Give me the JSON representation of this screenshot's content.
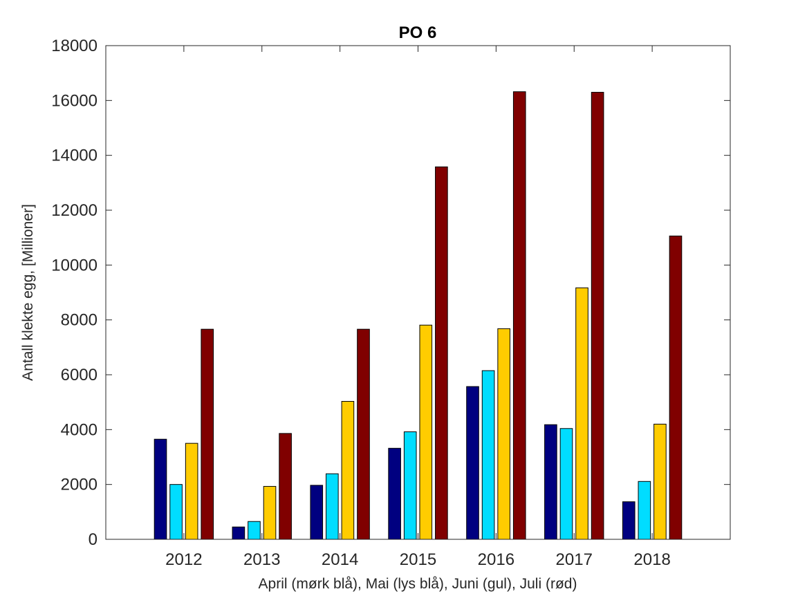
{
  "chart_data": {
    "type": "bar",
    "title": "PO 6",
    "xlabel": "April (mørk blå), Mai (lys blå), Juni (gul), Juli (rød)",
    "ylabel": "Antall klekte egg, [Millioner]",
    "categories": [
      "2012",
      "2013",
      "2014",
      "2015",
      "2016",
      "2017",
      "2018"
    ],
    "ylim": [
      0,
      18000
    ],
    "yticks": [
      0,
      2000,
      4000,
      6000,
      8000,
      10000,
      12000,
      14000,
      16000,
      18000
    ],
    "grid": false,
    "series": [
      {
        "color": "#000080",
        "values": [
          3650,
          450,
          1970,
          3320,
          5570,
          4180,
          1370
        ]
      },
      {
        "color": "#00DDFF",
        "values": [
          2000,
          650,
          2390,
          3920,
          6150,
          4040,
          2110
        ]
      },
      {
        "color": "#FFCC00",
        "values": [
          3500,
          1930,
          5030,
          7810,
          7680,
          9170,
          4200
        ]
      },
      {
        "color": "#800000",
        "values": [
          7660,
          3860,
          7660,
          13580,
          16320,
          16300,
          11060
        ]
      }
    ]
  }
}
